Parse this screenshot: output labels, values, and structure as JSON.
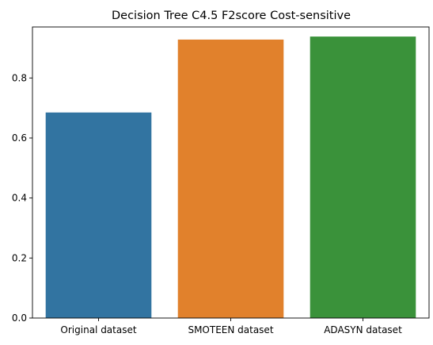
{
  "chart_data": {
    "type": "bar",
    "title": "Decision Tree C4.5 F2score Cost-sensitive",
    "xlabel": "",
    "ylabel": "",
    "categories": [
      "Original dataset",
      "SMOTEEN dataset",
      "ADASYN dataset"
    ],
    "values": [
      0.685,
      0.928,
      0.938
    ],
    "colors": [
      "#3274a1",
      "#e1812c",
      "#3a923a"
    ],
    "ylim": [
      0,
      0.97
    ],
    "yticks": [
      0.0,
      0.2,
      0.4,
      0.6,
      0.8
    ],
    "ytick_labels": [
      "0.0",
      "0.2",
      "0.4",
      "0.6",
      "0.8"
    ],
    "grid": false,
    "legend": "none"
  }
}
